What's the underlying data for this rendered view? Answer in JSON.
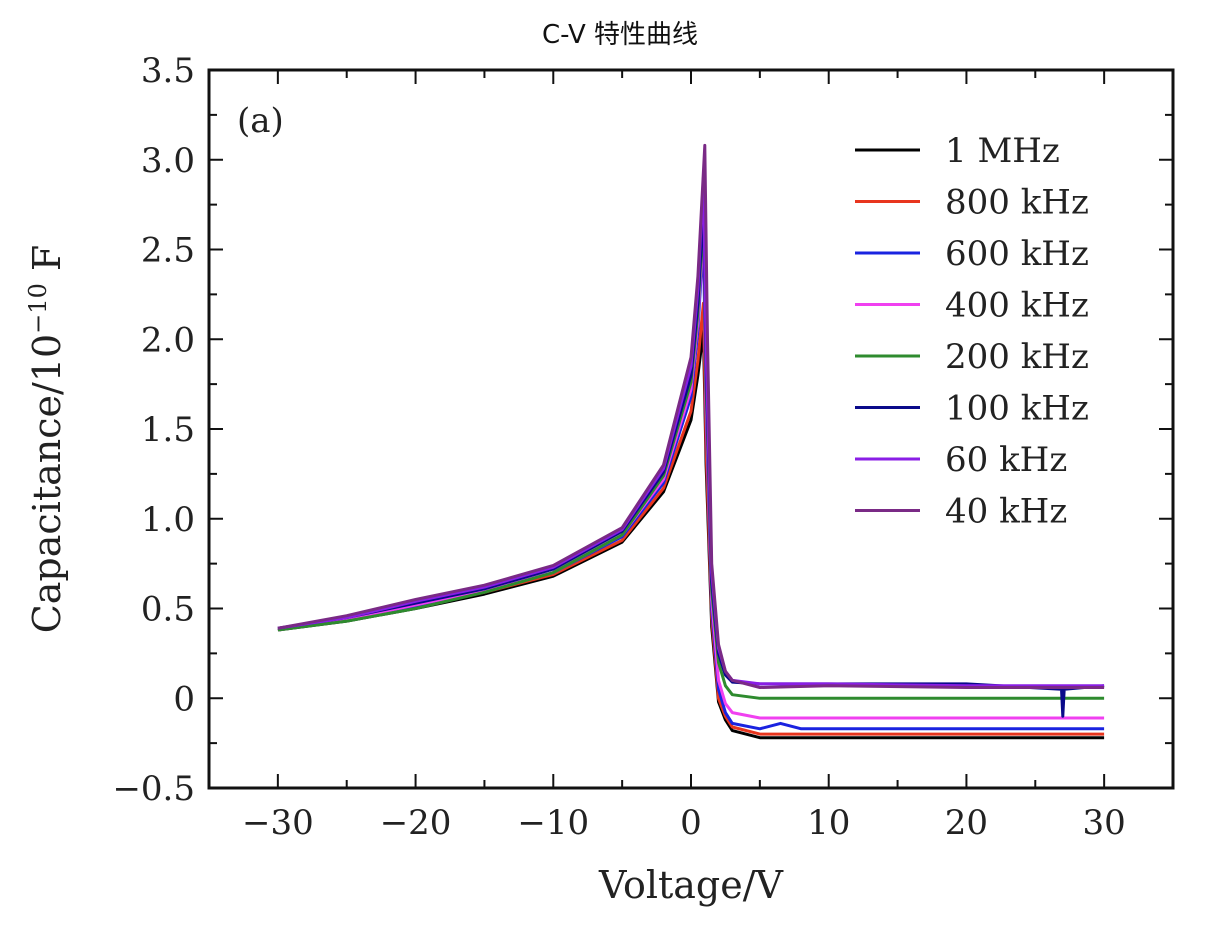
{
  "title": "C-V 特性曲线",
  "chart_data": {
    "type": "line",
    "panel_label": "(a)",
    "xlabel": "Voltage/V",
    "ylabel": "Capacitance/10",
    "ylabel_exp": "−10",
    "ylabel_unit": " F",
    "xlim": [
      -35,
      35
    ],
    "ylim": [
      -0.5,
      3.5
    ],
    "xticks": [
      -30,
      -20,
      -10,
      0,
      10,
      20,
      30
    ],
    "xtick_labels": [
      "−30",
      "−20",
      "−10",
      "0",
      "10",
      "20",
      "30"
    ],
    "yticks": [
      -0.5,
      0,
      0.5,
      1.0,
      1.5,
      2.0,
      2.5,
      3.0,
      3.5
    ],
    "ytick_labels": [
      "−0.5",
      "0",
      "0.5",
      "1.0",
      "1.5",
      "2.0",
      "2.5",
      "3.0",
      "3.5"
    ],
    "legend_position": "top-right",
    "grid": false,
    "series": [
      {
        "name": "1 MHz",
        "color": "#000000",
        "x": [
          -30,
          -25,
          -20,
          -15,
          -10,
          -5,
          -2,
          0,
          0.5,
          0.9,
          1.1,
          1.5,
          2,
          2.5,
          3,
          5,
          10,
          20,
          30
        ],
        "y": [
          0.38,
          0.43,
          0.5,
          0.58,
          0.68,
          0.87,
          1.15,
          1.55,
          1.8,
          2.05,
          1.3,
          0.4,
          -0.02,
          -0.12,
          -0.18,
          -0.22,
          -0.22,
          -0.22,
          -0.22
        ]
      },
      {
        "name": "800 kHz",
        "color": "#e8351e",
        "x": [
          -30,
          -25,
          -20,
          -15,
          -10,
          -5,
          -2,
          0,
          0.5,
          0.9,
          1.1,
          1.5,
          2,
          2.5,
          3,
          5,
          10,
          20,
          30
        ],
        "y": [
          0.38,
          0.44,
          0.51,
          0.59,
          0.69,
          0.88,
          1.17,
          1.6,
          1.88,
          2.2,
          1.4,
          0.45,
          0.0,
          -0.1,
          -0.16,
          -0.2,
          -0.2,
          -0.2,
          -0.2
        ]
      },
      {
        "name": "600 kHz",
        "color": "#1a23e0",
        "x": [
          -30,
          -25,
          -20,
          -15,
          -10,
          -5,
          -2,
          0,
          0.5,
          0.9,
          1.1,
          1.5,
          2,
          2.5,
          3,
          5,
          6.5,
          8,
          10,
          20,
          30
        ],
        "y": [
          0.38,
          0.44,
          0.51,
          0.6,
          0.7,
          0.9,
          1.2,
          1.68,
          2.05,
          2.58,
          1.6,
          0.5,
          0.05,
          -0.08,
          -0.14,
          -0.17,
          -0.14,
          -0.17,
          -0.17,
          -0.17,
          -0.17
        ]
      },
      {
        "name": "400 kHz",
        "color": "#f040f0",
        "x": [
          -30,
          -25,
          -20,
          -15,
          -10,
          -5,
          -2,
          0,
          0.5,
          0.9,
          1.1,
          1.5,
          2,
          2.5,
          3,
          5,
          10,
          20,
          30
        ],
        "y": [
          0.38,
          0.44,
          0.52,
          0.6,
          0.7,
          0.91,
          1.22,
          1.72,
          2.1,
          2.65,
          1.65,
          0.55,
          0.1,
          -0.03,
          -0.08,
          -0.11,
          -0.11,
          -0.11,
          -0.11
        ]
      },
      {
        "name": "200 kHz",
        "color": "#2e8b2e",
        "x": [
          -30,
          -25,
          -20,
          -15,
          -10,
          -5,
          -2,
          0,
          0.5,
          0.9,
          1.1,
          1.5,
          2,
          2.5,
          3,
          5,
          10,
          20,
          30
        ],
        "y": [
          0.38,
          0.43,
          0.5,
          0.59,
          0.7,
          0.91,
          1.24,
          1.76,
          2.15,
          2.7,
          1.75,
          0.6,
          0.2,
          0.07,
          0.02,
          0.0,
          0.0,
          0.0,
          0.0
        ]
      },
      {
        "name": "100 kHz",
        "color": "#0a0a8a",
        "x": [
          -30,
          -25,
          -20,
          -15,
          -10,
          -5,
          -2,
          0,
          0.5,
          0.9,
          1.1,
          1.5,
          2,
          2.5,
          3,
          5,
          10,
          20,
          26.9,
          27.0,
          27.1,
          30
        ],
        "y": [
          0.39,
          0.45,
          0.53,
          0.61,
          0.72,
          0.93,
          1.26,
          1.8,
          2.2,
          2.75,
          1.85,
          0.65,
          0.25,
          0.13,
          0.09,
          0.08,
          0.08,
          0.08,
          0.05,
          -0.1,
          0.05,
          0.07
        ]
      },
      {
        "name": "60 kHz",
        "color": "#8a1ee6",
        "x": [
          -30,
          -25,
          -20,
          -15,
          -10,
          -5,
          -2,
          0,
          0.5,
          0.9,
          1.1,
          1.5,
          2,
          2.5,
          3,
          5,
          10,
          20,
          30
        ],
        "y": [
          0.39,
          0.45,
          0.54,
          0.62,
          0.73,
          0.94,
          1.28,
          1.85,
          2.28,
          2.9,
          1.95,
          0.7,
          0.28,
          0.15,
          0.1,
          0.08,
          0.08,
          0.07,
          0.07
        ]
      },
      {
        "name": "40 kHz",
        "color": "#7a2a86",
        "x": [
          -30,
          -25,
          -20,
          -15,
          -10,
          -5,
          -2,
          0,
          0.5,
          1.0,
          1.2,
          1.5,
          2,
          2.5,
          3,
          5,
          10,
          20,
          30
        ],
        "y": [
          0.39,
          0.46,
          0.55,
          0.63,
          0.74,
          0.95,
          1.3,
          1.9,
          2.35,
          3.08,
          2.0,
          0.75,
          0.3,
          0.15,
          0.1,
          0.06,
          0.07,
          0.06,
          0.06
        ]
      }
    ]
  }
}
